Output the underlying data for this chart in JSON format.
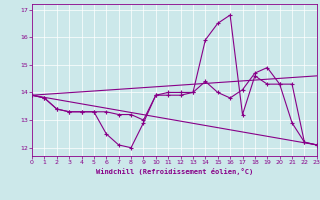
{
  "xlabel": "Windchill (Refroidissement éolien,°C)",
  "xlim": [
    0,
    23
  ],
  "ylim": [
    11.7,
    17.2
  ],
  "x_ticks": [
    0,
    1,
    2,
    3,
    4,
    5,
    6,
    7,
    8,
    9,
    10,
    11,
    12,
    13,
    14,
    15,
    16,
    17,
    18,
    19,
    20,
    21,
    22,
    23
  ],
  "y_ticks": [
    12,
    13,
    14,
    15,
    16,
    17
  ],
  "bg_color": "#cce8ea",
  "line_color": "#880088",
  "curve1_x": [
    0,
    1,
    2,
    3,
    4,
    5,
    6,
    7,
    8,
    9,
    10,
    11,
    12,
    13,
    14,
    15,
    16,
    17,
    18,
    19,
    20,
    21,
    22,
    23
  ],
  "curve1_y": [
    13.9,
    13.8,
    13.4,
    13.3,
    13.3,
    13.3,
    12.5,
    12.1,
    12.0,
    12.9,
    13.9,
    13.9,
    13.9,
    14.0,
    15.9,
    16.5,
    16.8,
    13.2,
    14.6,
    14.3,
    14.3,
    12.9,
    12.2,
    12.1
  ],
  "curve2_x": [
    0,
    1,
    2,
    3,
    4,
    5,
    6,
    7,
    8,
    9,
    10,
    11,
    12,
    13,
    14,
    15,
    16,
    17,
    18,
    19,
    20,
    21,
    22,
    23
  ],
  "curve2_y": [
    13.9,
    13.8,
    13.4,
    13.3,
    13.3,
    13.3,
    13.3,
    13.2,
    13.2,
    13.0,
    13.9,
    14.0,
    14.0,
    14.0,
    14.4,
    14.0,
    13.8,
    14.1,
    14.7,
    14.9,
    14.3,
    14.3,
    12.2,
    12.1
  ],
  "curve3_x": [
    0,
    23
  ],
  "curve3_y": [
    13.9,
    12.1
  ],
  "curve4_x": [
    0,
    23
  ],
  "curve4_y": [
    13.9,
    14.6
  ]
}
